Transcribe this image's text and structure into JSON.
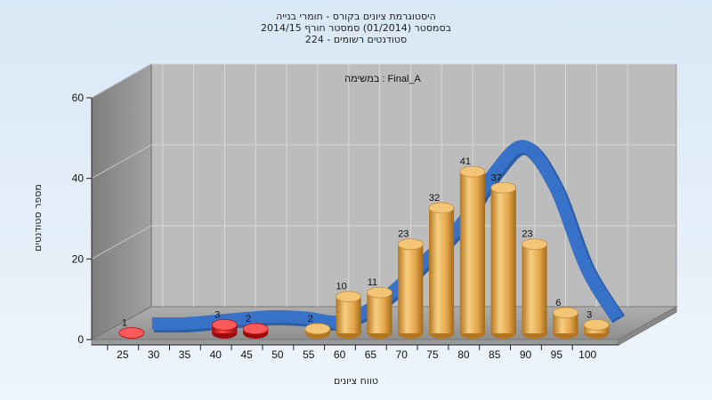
{
  "chart_data": {
    "type": "bar",
    "title_lines": [
      "היסטוגרמת ציונים בקורס - חומרי בנייה",
      "בסמסטר  (01/2014)  סמסטר חורף 2014/15",
      "סטודנטים רשומים - 224"
    ],
    "subtitle": "במשימה : Final_A",
    "xlabel": "טווח ציונים",
    "ylabel": "מספר סטודנטים",
    "ylim": [
      0,
      60
    ],
    "yticks": [
      0,
      20,
      40,
      60
    ],
    "xticks": [
      "25",
      "30",
      "35",
      "40",
      "45",
      "50",
      "55",
      "60",
      "65",
      "70",
      "75",
      "80",
      "85",
      "90",
      "95",
      "100"
    ],
    "categories": [
      "25",
      "30",
      "35",
      "40",
      "45",
      "50",
      "55",
      "60",
      "65",
      "70",
      "75",
      "80",
      "85",
      "90",
      "95",
      "100"
    ],
    "values": [
      1,
      0,
      0,
      3,
      2,
      0,
      2,
      10,
      11,
      23,
      32,
      41,
      37,
      23,
      6,
      3
    ],
    "bar_colors": [
      "#d91818",
      "#d91818",
      "#d91818",
      "#d91818",
      "#d91818",
      "#d91818",
      "#e0a440",
      "#e0a440",
      "#e0a440",
      "#e0a440",
      "#e0a440",
      "#e0a440",
      "#e0a440",
      "#e0a440",
      "#e0a440",
      "#e0a440"
    ],
    "curve": {
      "x": [
        "25",
        "30",
        "35",
        "40",
        "45",
        "50",
        "55",
        "60",
        "65",
        "70",
        "75",
        "80",
        "85",
        "90",
        "95",
        "100"
      ],
      "y": [
        0,
        0,
        0.6,
        1.3,
        1.8,
        1.4,
        0.5,
        3.5,
        9.5,
        17,
        25,
        37,
        44,
        34,
        14,
        1.5
      ],
      "color": "#3872c8"
    },
    "grid": true
  }
}
